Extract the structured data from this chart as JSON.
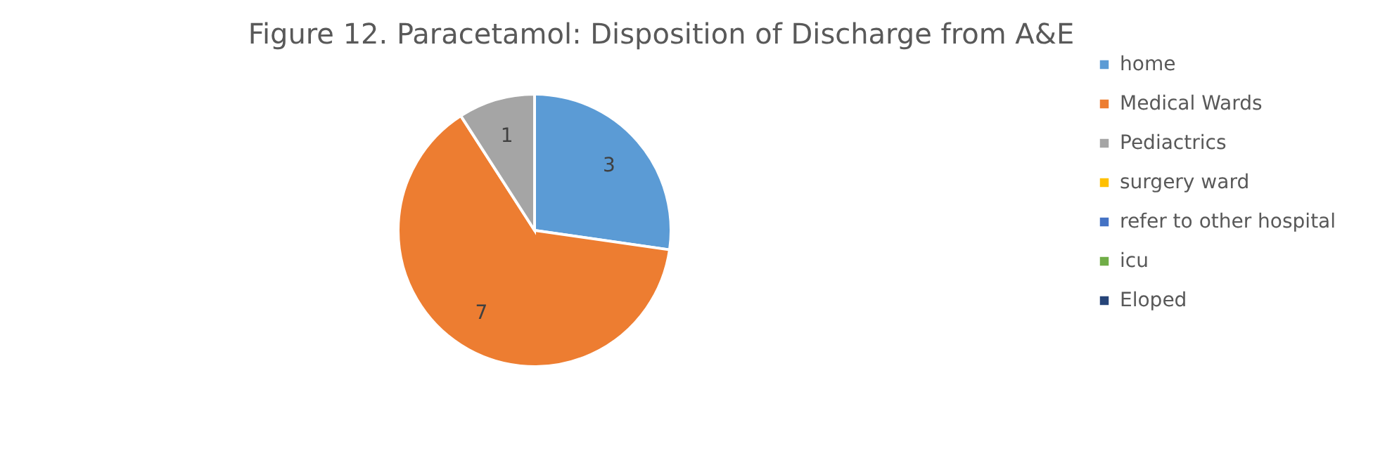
{
  "chart_data": {
    "type": "pie",
    "title": "Figure 12. Paracetamol: Disposition of Discharge from A&E",
    "categories": [
      "home",
      "Medical Wards",
      "Pediactrics",
      "surgery ward",
      "refer to other hospital",
      "icu",
      "Eloped"
    ],
    "values": [
      3,
      7,
      1,
      0,
      0,
      0,
      0
    ],
    "value_labels": [
      "3",
      "7",
      "1",
      null,
      null,
      null,
      null
    ],
    "colors": [
      "#5b9bd5",
      "#ed7d31",
      "#a5a5a5",
      "#ffc000",
      "#4472c4",
      "#70ad47",
      "#264478"
    ],
    "legend": "right"
  }
}
